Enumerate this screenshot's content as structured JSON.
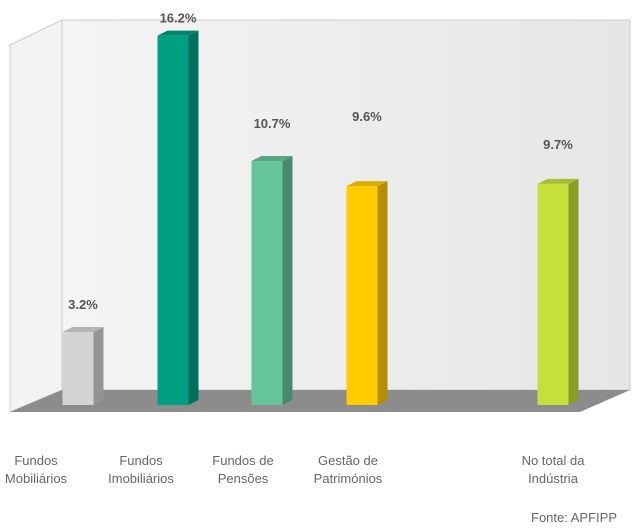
{
  "chart_data": {
    "type": "bar3d",
    "categories": [
      "Fundos Mobiliários",
      "Fundos Imobiliários",
      "Fundos de Pensões",
      "Gestão de Patrimónios",
      "No total da Indústria"
    ],
    "values": [
      3.2,
      16.2,
      10.7,
      9.6,
      9.7
    ],
    "value_labels": [
      "3.2%",
      "16.2%",
      "10.7%",
      "9.6%",
      "9.7%"
    ],
    "colors": [
      "#d4d4d4",
      "#009e82",
      "#66c49a",
      "#ffcc00",
      "#c6df3a"
    ],
    "source": "Fonte: APFIPP"
  }
}
